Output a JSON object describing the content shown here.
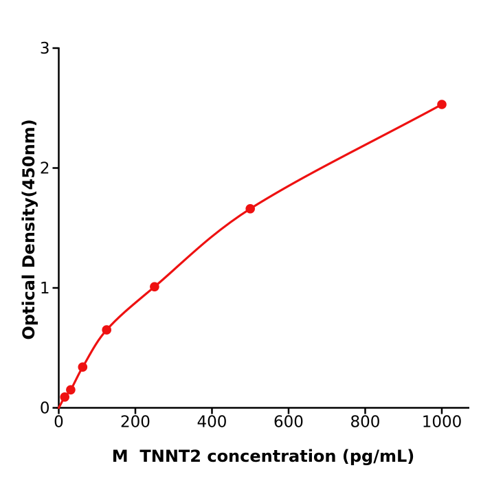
{
  "figure": {
    "background_color": "#ffffff",
    "axis_color": "#000000",
    "text_color": "#000000"
  },
  "chart_data": {
    "type": "line",
    "title": "",
    "xlabel": "M  TNNT2 concentration (pg/mL)",
    "ylabel": "Optical Density(450nm)",
    "x": [
      15.6,
      31.2,
      62.5,
      125,
      250,
      500,
      1000
    ],
    "y": [
      0.09,
      0.15,
      0.34,
      0.65,
      1.01,
      1.66,
      2.53
    ],
    "curve_start": {
      "x": 0,
      "y": 0
    },
    "xlim": [
      0,
      1070
    ],
    "ylim": [
      0,
      3
    ],
    "xticks": [
      0,
      200,
      400,
      600,
      800,
      1000
    ],
    "yticks": [
      0,
      1,
      2,
      3
    ],
    "grid": false,
    "legend_position": "none",
    "line_color": "#ee1111",
    "marker": "circle",
    "marker_color": "#ee1111"
  }
}
